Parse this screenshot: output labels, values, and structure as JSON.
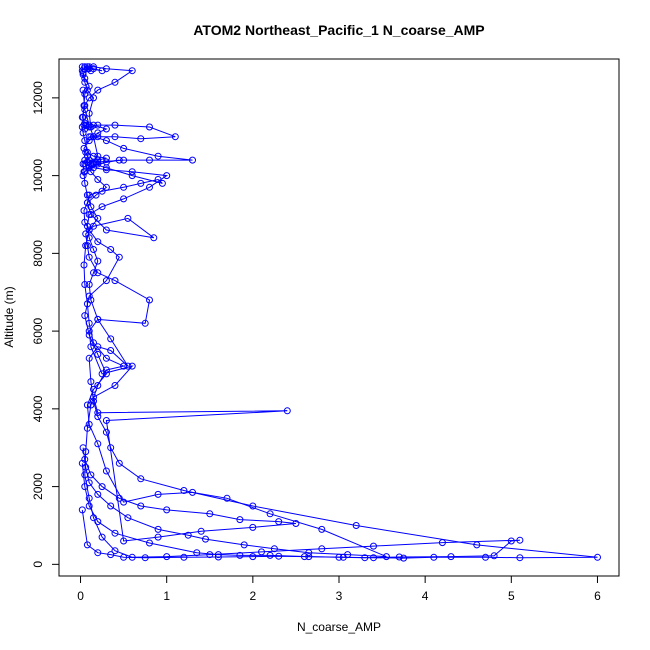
{
  "chart_data": {
    "type": "line",
    "title": "ATOM2 Northeast_Pacific_1 N_coarse_AMP",
    "xlabel": "N_coarse_AMP",
    "ylabel": "Altitude (m)",
    "xlim": [
      -0.25,
      6.25
    ],
    "ylim": [
      -300,
      13000
    ],
    "x_ticks": [
      0,
      1,
      2,
      3,
      4,
      5,
      6
    ],
    "y_ticks": [
      0,
      2000,
      4000,
      6000,
      8000,
      10000,
      12000
    ],
    "grid": false,
    "legend": "none",
    "series_color": "#0000ff",
    "marker": "open-circle",
    "series": [
      {
        "x": [
          0.02,
          0.08,
          0.2,
          0.35,
          0.5,
          0.75,
          1.2,
          1.6,
          2.0,
          2.3,
          2.6,
          3.0,
          3.3,
          3.7,
          4.3,
          4.8,
          5.0,
          5.1,
          4.2,
          3.4,
          2.8,
          2.1,
          1.5,
          1.0,
          0.6,
          0.4,
          0.25,
          0.15,
          0.1,
          0.05,
          0.06,
          0.08,
          0.12,
          0.2,
          0.3,
          0.5,
          0.3,
          0.15,
          0.1,
          0.08,
          0.05,
          0.04,
          0.06,
          0.1,
          0.2,
          0.12,
          0.08,
          0.05,
          0.04,
          0.03,
          0.05,
          0.1,
          0.2,
          0.3,
          0.15,
          0.08,
          0.05,
          0.03,
          0.02,
          0.04,
          0.06,
          0.1,
          0.05,
          0.03,
          0.04,
          0.05,
          0.1,
          0.05,
          0.03,
          0.02,
          0.04,
          0.08,
          0.15,
          0.25,
          0.1,
          0.05
        ],
        "y": [
          1400,
          500,
          300,
          250,
          180,
          170,
          180,
          190,
          200,
          210,
          200,
          180,
          170,
          190,
          200,
          220,
          600,
          620,
          560,
          470,
          400,
          320,
          250,
          200,
          180,
          350,
          700,
          1200,
          1700,
          2300,
          2900,
          3500,
          4100,
          4600,
          5000,
          5100,
          5300,
          5700,
          6200,
          6700,
          7200,
          7700,
          8200,
          8600,
          8900,
          9200,
          9500,
          9800,
          10100,
          10300,
          10400,
          10400,
          10400,
          10450,
          10500,
          10600,
          10900,
          11100,
          11250,
          11300,
          11300,
          11250,
          11200,
          11500,
          11800,
          12100,
          12300,
          12500,
          12650,
          12700,
          12750,
          12800,
          12750,
          12700,
          12750,
          12800
        ]
      },
      {
        "x": [
          0.02,
          0.05,
          0.1,
          0.2,
          0.4,
          0.8,
          1.35,
          1.6,
          1.85,
          2.2,
          2.65,
          3.05,
          3.4,
          3.75,
          4.1,
          4.7,
          5.1,
          6.0,
          4.6,
          3.2,
          2.0,
          1.2,
          0.7,
          0.45,
          0.35,
          0.3,
          0.2,
          0.15,
          0.12,
          0.1,
          0.2,
          0.35,
          0.55,
          0.35,
          0.2,
          0.12,
          0.1,
          0.15,
          0.2,
          0.15,
          0.1,
          0.08,
          0.1,
          0.25,
          0.5,
          0.8,
          1.0,
          0.6,
          0.3,
          0.15,
          0.1,
          0.05,
          0.08,
          0.2,
          0.5,
          0.8,
          1.3,
          0.9,
          0.5,
          0.3,
          0.15,
          0.1,
          0.12,
          0.2,
          0.4,
          0.7,
          1.1,
          0.8,
          0.4,
          0.2,
          0.12,
          0.1,
          0.15,
          0.08,
          0.05,
          0.03,
          0.02
        ],
        "y": [
          2600,
          2000,
          1500,
          1100,
          800,
          550,
          300,
          250,
          230,
          230,
          200,
          180,
          170,
          160,
          180,
          180,
          170,
          180,
          500,
          1000,
          1500,
          1900,
          2200,
          2600,
          3000,
          3400,
          3800,
          4200,
          4700,
          5300,
          5600,
          5500,
          5100,
          5800,
          6300,
          6800,
          7200,
          7500,
          7800,
          8100,
          8400,
          8700,
          9000,
          9200,
          9400,
          9700,
          10000,
          10100,
          10150,
          10200,
          10250,
          10300,
          10350,
          10350,
          10400,
          10400,
          10400,
          10500,
          10700,
          10900,
          11000,
          11000,
          11000,
          11000,
          11000,
          10950,
          11000,
          11250,
          11300,
          11300,
          11250,
          11600,
          12000,
          12200,
          12400,
          12600,
          12800
        ]
      },
      {
        "x": [
          0.05,
          0.12,
          0.25,
          0.45,
          0.7,
          1.0,
          1.5,
          1.85,
          2.3,
          2.5,
          2.0,
          1.4,
          0.9,
          0.5,
          0.3,
          2.4,
          0.2,
          0.15,
          0.4,
          0.6,
          0.25,
          0.12,
          0.1,
          0.2,
          0.75,
          0.8,
          0.4,
          0.2,
          0.1,
          0.08,
          0.06,
          0.15,
          0.55,
          0.85,
          0.3,
          0.12,
          0.08,
          0.1,
          0.25,
          0.5,
          0.7,
          0.9,
          0.95,
          0.6,
          0.3,
          0.15,
          0.1,
          0.08,
          0.06,
          0.04,
          0.1,
          0.2,
          0.3,
          0.15,
          0.05,
          0.02,
          0.05,
          0.1,
          0.2,
          0.4,
          0.6,
          0.3,
          0.15,
          0.1,
          0.08,
          0.12
        ],
        "y": [
          2700,
          2300,
          2000,
          1700,
          1500,
          1400,
          1300,
          1150,
          1100,
          1050,
          950,
          850,
          700,
          600,
          3700,
          3950,
          3900,
          4300,
          4600,
          5100,
          4900,
          5600,
          6000,
          6300,
          6200,
          6800,
          7300,
          7500,
          7900,
          8200,
          8500,
          8700,
          8900,
          8400,
          8600,
          9000,
          9300,
          9500,
          9600,
          9700,
          9800,
          9900,
          9800,
          10000,
          10200,
          10300,
          10400,
          10500,
          10600,
          10700,
          10900,
          11100,
          11200,
          11300,
          11350,
          11500,
          11800,
          12000,
          12200,
          12400,
          12700,
          12750,
          12800,
          12800,
          12750,
          12700
        ]
      },
      {
        "x": [
          0.03,
          0.06,
          0.1,
          0.2,
          0.35,
          0.55,
          0.9,
          1.25,
          1.45,
          1.9,
          2.25,
          2.65,
          3.1,
          3.55,
          2.8,
          2.2,
          1.7,
          1.3,
          0.9,
          0.5,
          0.3,
          0.2,
          0.1,
          0.08,
          0.15,
          0.3,
          0.2,
          0.1,
          0.05,
          0.1,
          0.3,
          0.45,
          0.35,
          0.2,
          0.1,
          0.05,
          0.04,
          0.08,
          0.18,
          0.3,
          0.2,
          0.12,
          0.1,
          0.3,
          0.45,
          0.2,
          0.1,
          0.05,
          0.03,
          0.05,
          0.12,
          0.2,
          0.15,
          0.1,
          0.05,
          0.03
        ],
        "y": [
          3000,
          2500,
          2100,
          1800,
          1500,
          1200,
          900,
          750,
          650,
          500,
          400,
          300,
          250,
          200,
          900,
          1300,
          1700,
          1850,
          1800,
          1600,
          2400,
          3100,
          3600,
          4100,
          4500,
          4900,
          5400,
          5900,
          6400,
          6900,
          7300,
          7900,
          8100,
          8300,
          8600,
          8800,
          9100,
          9300,
          9500,
          9700,
          9900,
          10100,
          10200,
          10350,
          10400,
          10300,
          10200,
          10100,
          10000,
          10100,
          10300,
          10500,
          11000,
          11300,
          11700,
          12200
        ]
      }
    ]
  }
}
